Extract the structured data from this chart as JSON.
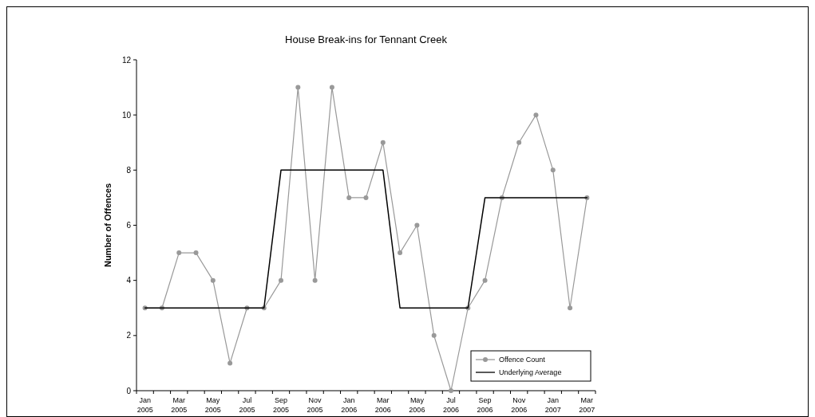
{
  "chart_data": {
    "type": "line",
    "title": "House Break-ins for Tennant Creek",
    "ylabel": "Number of Offences",
    "categories": [
      "Jan 2005",
      null,
      "Mar 2005",
      null,
      "May 2005",
      null,
      "Jul 2005",
      null,
      "Sep 2005",
      null,
      "Nov 2005",
      null,
      "Jan 2006",
      null,
      "Mar 2006",
      null,
      "May 2006",
      null,
      "Jul 2006",
      null,
      "Sep 2006",
      null,
      "Nov 2006",
      null,
      "Jan 2007",
      null,
      "Mar 2007"
    ],
    "series": [
      {
        "name": "Offence Count",
        "color": "#999999",
        "marker": "circle",
        "values": [
          3,
          3,
          5,
          5,
          4,
          1,
          3,
          3,
          4,
          11,
          4,
          11,
          7,
          7,
          9,
          5,
          6,
          2,
          0,
          3,
          4,
          7,
          9,
          10,
          8,
          3,
          7
        ]
      },
      {
        "name": "Underlying Average",
        "color": "#000000",
        "marker": "none",
        "values": [
          3,
          3,
          3,
          3,
          3,
          3,
          3,
          3,
          8,
          8,
          8,
          8,
          8,
          8,
          8,
          3,
          3,
          3,
          3,
          3,
          7,
          7,
          7,
          7,
          7,
          7,
          7
        ]
      }
    ],
    "ylim": [
      0,
      12
    ],
    "yticks": [
      0,
      2,
      4,
      6,
      8,
      10,
      12
    ],
    "legend": "bottom right",
    "grid": false
  }
}
